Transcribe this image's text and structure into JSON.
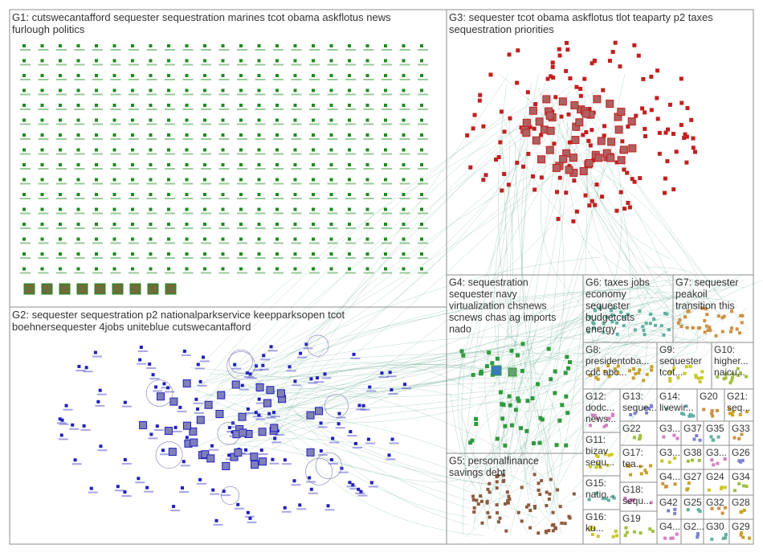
{
  "colors": {
    "G1": "#1f8a1f",
    "G2": "#1f1fbf",
    "G3": "#c21f1f",
    "G4": "#2e9a3c",
    "G5": "#8c5a40",
    "G6": "#b5b51f",
    "G7": "#c9c92a",
    "small": "#6a9aa8",
    "edges": "#3a8f6a",
    "box": "#8c8c8c",
    "text": "#333333"
  },
  "groups": [
    {
      "id": "G1",
      "lines": [
        "G1: cutswecantafford sequester sequestration marines tcot obama askflotus news",
        "furlough politics"
      ]
    },
    {
      "id": "G2",
      "lines": [
        "G2: sequester sequestration p2 nationalparkservice keepparksopen tcot",
        "boehnersequester 4jobs uniteblue cutswecantafford"
      ]
    },
    {
      "id": "G3",
      "lines": [
        "G3: sequester tcot obama askflotus tlot teaparty p2 taxes",
        "sequestration priorities"
      ]
    },
    {
      "id": "G4",
      "lines": [
        "G4: sequestration",
        "sequester navy",
        "virtualization chsnews",
        "scnews chas ag imports",
        "nado"
      ]
    },
    {
      "id": "G5",
      "lines": [
        "G5: personalfinance",
        "savings debt"
      ]
    },
    {
      "id": "G6",
      "lines": [
        "G6: taxes jobs",
        "economy",
        "sequester",
        "budgetcuts",
        "energy"
      ]
    },
    {
      "id": "G7",
      "lines": [
        "G7: sequester",
        "peakoil",
        "transition this"
      ]
    },
    {
      "id": "G8",
      "lines": [
        "G8:",
        "presidentoba...",
        "cdc abc..."
      ]
    },
    {
      "id": "G9",
      "lines": [
        "G9:",
        "sequester",
        "tcot..."
      ]
    },
    {
      "id": "G10",
      "lines": [
        "G10:",
        "higher...",
        "naicu..."
      ]
    },
    {
      "id": "G12",
      "lines": [
        "G12:",
        "dodc...",
        "news..."
      ]
    },
    {
      "id": "G13",
      "lines": [
        "G13:",
        "seque..."
      ]
    },
    {
      "id": "G14",
      "lines": [
        "G14:",
        "livewir..."
      ]
    },
    {
      "id": "G20",
      "lines": [
        "G20"
      ]
    },
    {
      "id": "G21",
      "lines": [
        "G21:",
        "seq..."
      ]
    },
    {
      "id": "G11",
      "lines": [
        "G11:",
        "bizav",
        "sequ..."
      ]
    },
    {
      "id": "G22",
      "lines": [
        "G22"
      ]
    },
    {
      "id": "G3x",
      "lines": [
        "G3..."
      ]
    },
    {
      "id": "G37",
      "lines": [
        "G37"
      ]
    },
    {
      "id": "G35",
      "lines": [
        "G35"
      ]
    },
    {
      "id": "G33",
      "lines": [
        "G33"
      ]
    },
    {
      "id": "G17",
      "lines": [
        "G17:",
        "tea..."
      ]
    },
    {
      "id": "G3y",
      "lines": [
        "G3..."
      ]
    },
    {
      "id": "G38",
      "lines": [
        "G38"
      ]
    },
    {
      "id": "G3z",
      "lines": [
        "G3..."
      ]
    },
    {
      "id": "G26",
      "lines": [
        "G26"
      ]
    },
    {
      "id": "G15",
      "lines": [
        "G15:",
        "natio..."
      ]
    },
    {
      "id": "G4x",
      "lines": [
        "G4..."
      ]
    },
    {
      "id": "G27",
      "lines": [
        "G27"
      ]
    },
    {
      "id": "G24",
      "lines": [
        "G24"
      ]
    },
    {
      "id": "G34",
      "lines": [
        "G34"
      ]
    },
    {
      "id": "G18",
      "lines": [
        "G18:",
        "sequ..."
      ]
    },
    {
      "id": "G42",
      "lines": [
        "G42"
      ]
    },
    {
      "id": "G25",
      "lines": [
        "G25"
      ]
    },
    {
      "id": "G32",
      "lines": [
        "G32"
      ]
    },
    {
      "id": "G28",
      "lines": [
        "G28"
      ]
    },
    {
      "id": "G16",
      "lines": [
        "G16:",
        "ku..."
      ]
    },
    {
      "id": "G19",
      "lines": [
        "G19"
      ]
    },
    {
      "id": "G4y",
      "lines": [
        "G4..."
      ]
    },
    {
      "id": "G2x",
      "lines": [
        "G2..."
      ]
    },
    {
      "id": "G30",
      "lines": [
        "G30"
      ]
    },
    {
      "id": "G31",
      "lines": [
        "G31"
      ]
    },
    {
      "id": "G29",
      "lines": [
        "G29"
      ]
    }
  ]
}
